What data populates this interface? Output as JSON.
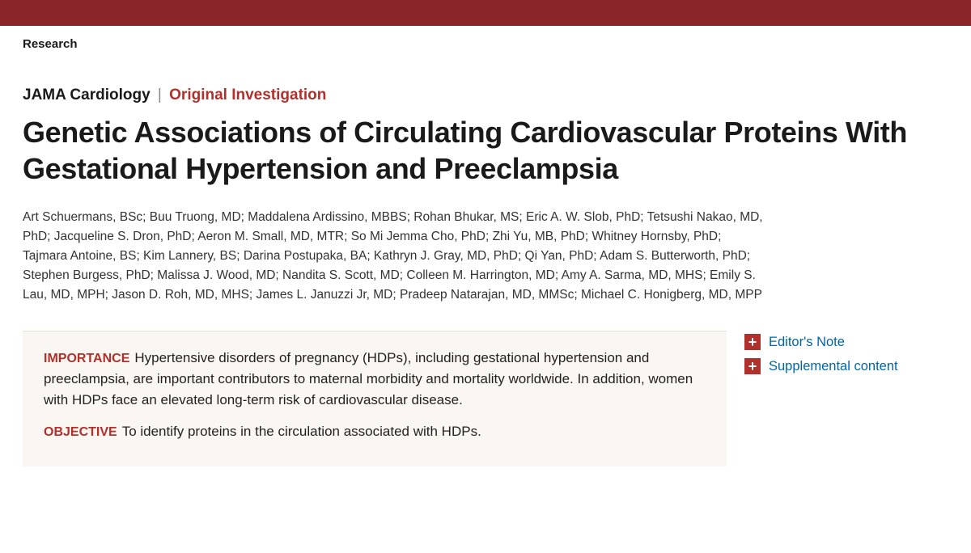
{
  "colors": {
    "brand_bar": "#8a2529",
    "accent_red": "#b0302c",
    "link_blue": "#0066a1",
    "abstract_bg": "#faf7f2",
    "text": "#1a1a1a"
  },
  "section_label": "Research",
  "journal_name": "JAMA Cardiology",
  "article_type": "Original Investigation",
  "title": "Genetic Associations of Circulating Cardiovascular Proteins With Gestational Hypertension and Preeclampsia",
  "authors": "Art Schuermans, BSc; Buu Truong, MD; Maddalena Ardissino, MBBS; Rohan Bhukar, MS; Eric A. W. Slob, PhD; Tetsushi Nakao, MD, PhD; Jacqueline S. Dron, PhD; Aeron M. Small, MD, MTR; So Mi Jemma Cho, PhD; Zhi Yu, MB, PhD; Whitney Hornsby, PhD; Tajmara Antoine, BS; Kim Lannery, BS; Darina Postupaka, BA; Kathryn J. Gray, MD, PhD; Qi Yan, PhD; Adam S. Butterworth, PhD; Stephen Burgess, PhD; Malissa J. Wood, MD; Nandita S. Scott, MD; Colleen M. Harrington, MD; Amy A. Sarma, MD, MHS; Emily S. Lau, MD, MPH; Jason D. Roh, MD, MHS; James L. Januzzi Jr, MD; Pradeep Natarajan, MD, MMSc; Michael C. Honigberg, MD, MPP",
  "abstract": {
    "importance_label": "IMPORTANCE",
    "importance_text": "Hypertensive disorders of pregnancy (HDPs), including gestational hypertension and preeclampsia, are important contributors to maternal morbidity and mortality worldwide. In addition, women with HDPs face an elevated long-term risk of cardiovascular disease.",
    "objective_label": "OBJECTIVE",
    "objective_text": "To identify proteins in the circulation associated with HDPs."
  },
  "sidebar": {
    "editors_note": "Editor's Note",
    "supplemental": "Supplemental content"
  }
}
